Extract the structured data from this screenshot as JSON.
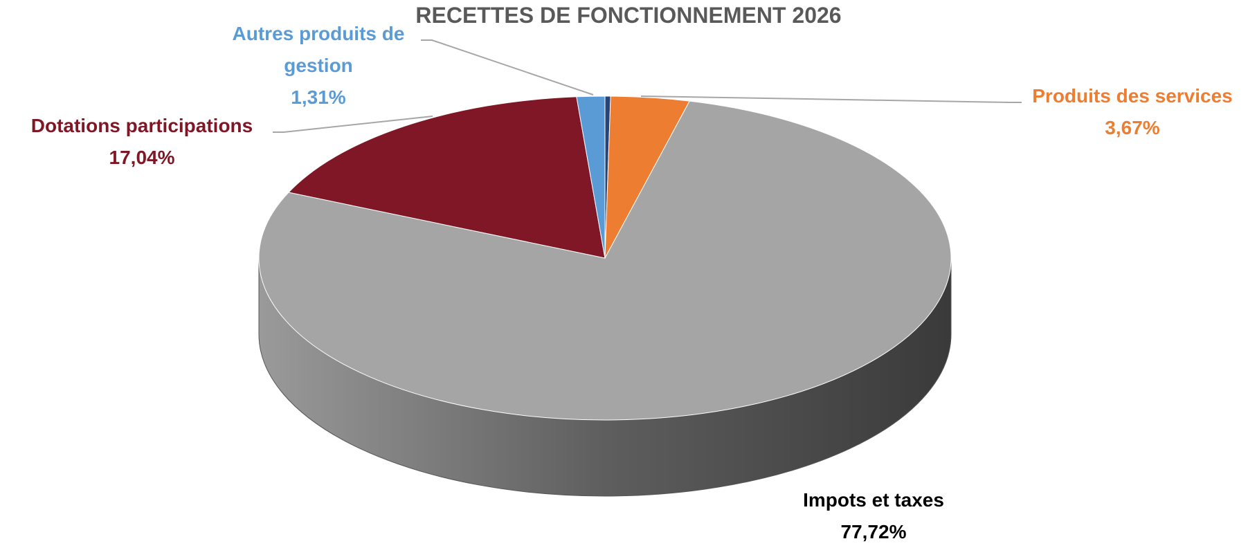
{
  "chart_data": {
    "type": "pie",
    "title": "RECETTES DE FONCTIONNEMENT 2026",
    "categories": [
      null,
      "Produits des services",
      "Impots et taxes",
      "Dotations participations",
      "Autres produits de gestion"
    ],
    "values": [
      0.26,
      3.67,
      77.72,
      17.04,
      1.31
    ],
    "value_labels": [
      null,
      "3,67%",
      "77,72%",
      "17,04%",
      "1,31%"
    ],
    "colors": [
      "#264478",
      "#ed7d31",
      "#a5a5a5",
      "#7f1726",
      "#5b9bd5"
    ]
  }
}
